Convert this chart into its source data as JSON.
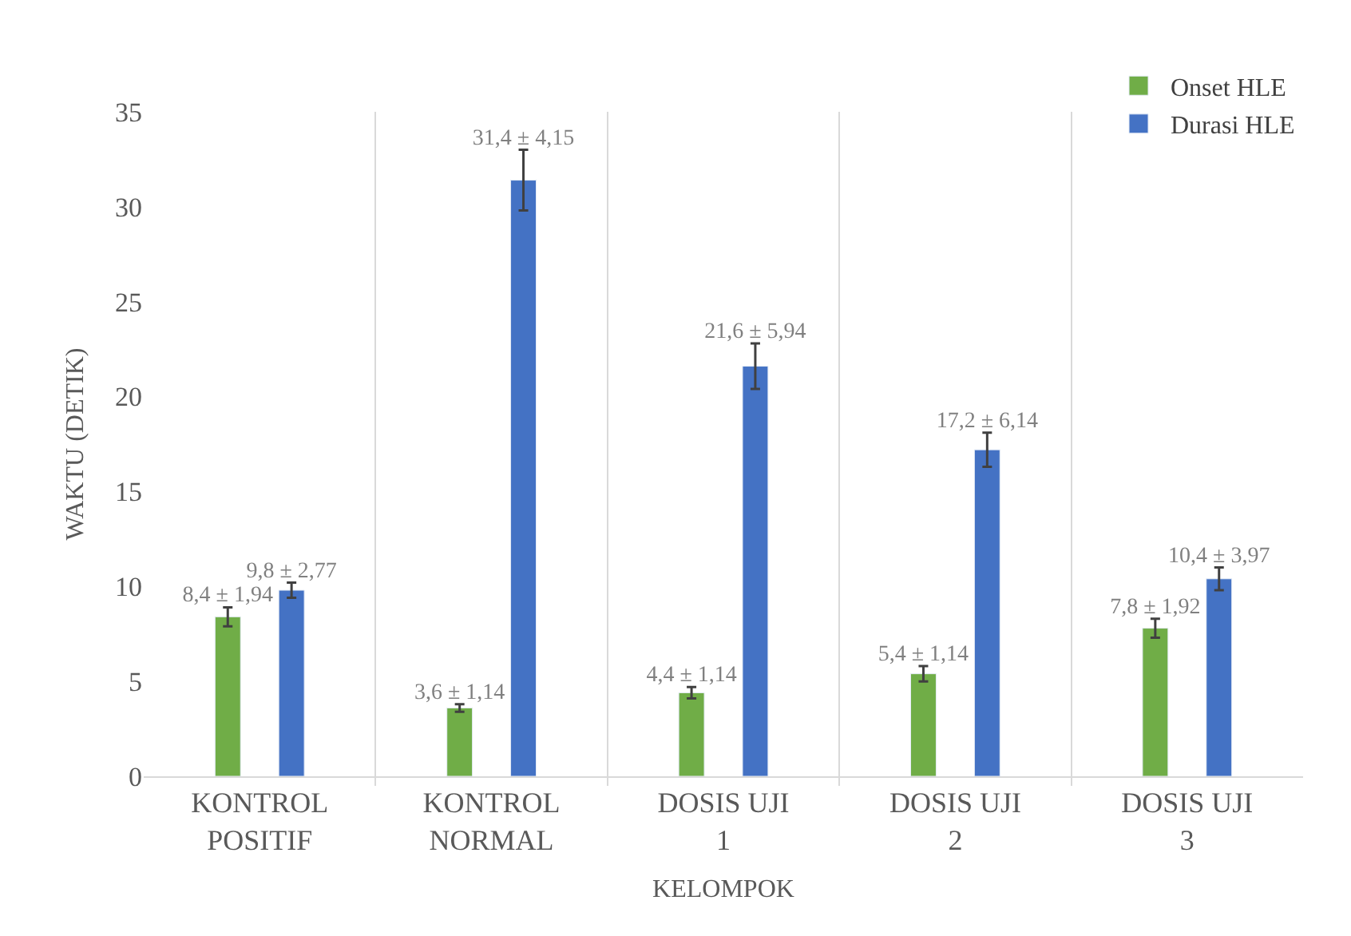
{
  "chart_data": {
    "type": "bar",
    "xlabel": "KELOMPOK",
    "ylabel": "WAKTU (DETIK)",
    "categories": [
      "KONTROL\nPOSITIF",
      "KONTROL\nNORMAL",
      "DOSIS UJI\n1",
      "DOSIS UJI\n2",
      "DOSIS UJI\n3"
    ],
    "series": [
      {
        "name": "Onset HLE",
        "color": "#70ad47",
        "values": [
          8.4,
          3.6,
          4.4,
          5.4,
          7.8
        ],
        "errors": [
          0.5,
          0.2,
          0.3,
          0.4,
          0.5
        ],
        "value_labels": [
          "8,4 ± 1,94",
          "3,6 ± 1,14",
          "4,4 ± 1,14",
          "5,4 ± 1,14",
          "7,8 ± 1,92"
        ]
      },
      {
        "name": "Durasi HLE",
        "color": "#4472c4",
        "values": [
          9.8,
          31.4,
          21.6,
          17.2,
          10.4
        ],
        "errors": [
          0.4,
          1.6,
          1.2,
          0.9,
          0.6
        ],
        "value_labels": [
          "9,8 ± 2,77",
          "31,4 ± 4,15",
          "21,6 ± 5,94",
          "17,2 ± 6,14",
          "10,4 ± 3,97"
        ]
      }
    ],
    "ylim": [
      0,
      35
    ],
    "yticks": [
      0,
      5,
      10,
      15,
      20,
      25,
      30,
      35
    ],
    "grid": "x",
    "legend": "top right"
  }
}
